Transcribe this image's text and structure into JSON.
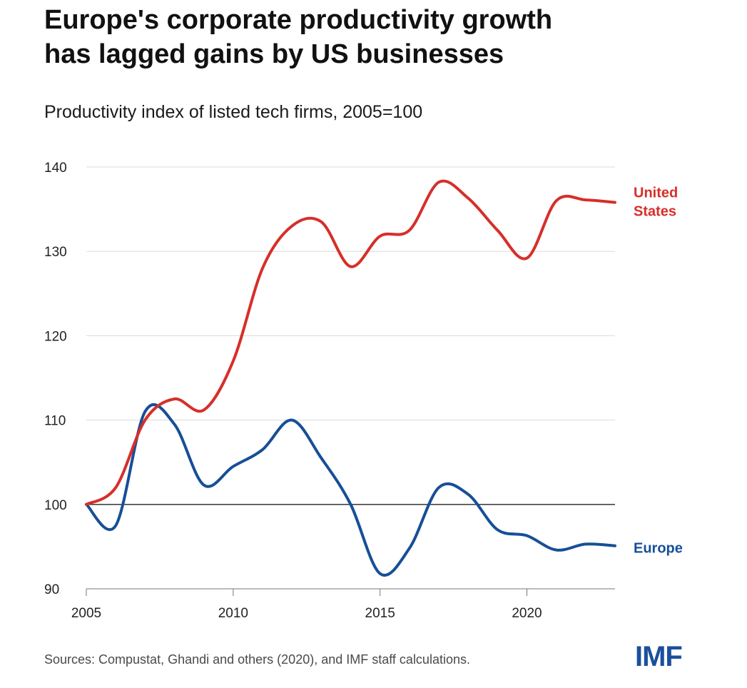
{
  "title_lines": [
    "Europe's corporate productivity growth",
    "has lagged gains by US businesses"
  ],
  "subtitle": "Productivity index of listed tech firms, 2005=100",
  "source": "Sources: Compustat, Ghandi and others (2020), and IMF staff calculations.",
  "logo": "IMF",
  "colors": {
    "us": "#d62f2a",
    "europe": "#174f97",
    "grid": "#dcdcdc",
    "baseline": "#222222",
    "axis_text": "#222222"
  },
  "chart_data": {
    "type": "line",
    "xlim": [
      2005,
      2023
    ],
    "ylim": [
      90,
      140
    ],
    "xticks": [
      2005,
      2010,
      2015,
      2020
    ],
    "yticks": [
      90,
      100,
      110,
      120,
      130,
      140
    ],
    "baseline": 100,
    "grid": true,
    "series": [
      {
        "name": "United States",
        "label_lines": [
          "United",
          "States"
        ],
        "color": "#d62f2a",
        "x": [
          2005,
          2006,
          2007,
          2008,
          2009,
          2010,
          2011,
          2012,
          2013,
          2014,
          2015,
          2016,
          2017,
          2018,
          2019,
          2020,
          2021,
          2022,
          2023
        ],
        "y": [
          100,
          102,
          110,
          112.5,
          111.2,
          117,
          128,
          133,
          133.5,
          128.2,
          131.8,
          132.5,
          138.2,
          136.3,
          132.5,
          129.2,
          136,
          136.1,
          135.8
        ]
      },
      {
        "name": "Europe",
        "label_lines": [
          "Europe"
        ],
        "color": "#174f97",
        "x": [
          2005,
          2006,
          2007,
          2008,
          2009,
          2010,
          2011,
          2012,
          2013,
          2014,
          2015,
          2016,
          2017,
          2018,
          2019,
          2020,
          2021,
          2022,
          2023
        ],
        "y": [
          100,
          97.5,
          111,
          109.5,
          102.3,
          104.5,
          106.5,
          110,
          105.5,
          100,
          91.8,
          94.8,
          102,
          101.2,
          97,
          96.3,
          94.6,
          95.3,
          95.1
        ]
      }
    ]
  }
}
